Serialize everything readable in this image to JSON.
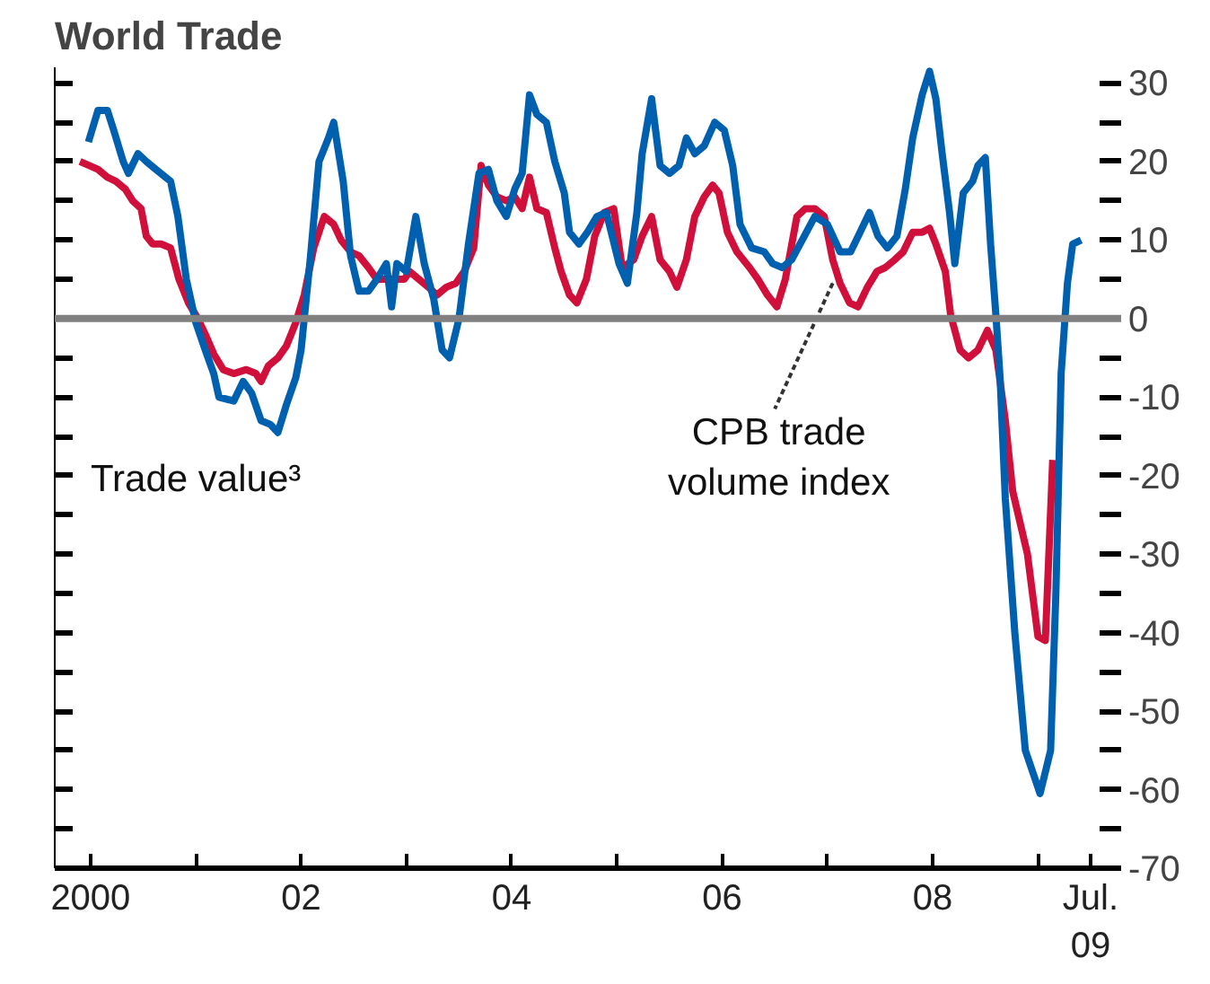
{
  "chart_data": {
    "type": "line",
    "title": "World Trade",
    "xlim": [
      1999.66,
      2009.79
    ],
    "ylim": [
      -70,
      32
    ],
    "annotations": [
      "Trade value³",
      {
        "text": "CPB trade\nvolume index",
        "x": 2007.05,
        "y": 4.5
      }
    ],
    "xticks": [
      2000,
      {
        "value": 2001,
        "label": null
      },
      {
        "value": 2002,
        "label": "02"
      },
      {
        "value": 2003,
        "label": null
      },
      {
        "value": 2004,
        "label": "04"
      },
      {
        "value": 2005,
        "label": null
      },
      {
        "value": 2006,
        "label": "06"
      },
      {
        "value": 2007,
        "label": null
      },
      {
        "value": 2008,
        "label": "08"
      },
      {
        "value": 2009,
        "label": null
      },
      {
        "value": 2009.5,
        "label": "Jul.\n09"
      }
    ],
    "yticks": [
      -70,
      {
        "value": -65,
        "label": null
      },
      -60,
      {
        "value": -55,
        "label": null
      },
      -50,
      {
        "value": -45,
        "label": null
      },
      -40,
      {
        "value": -35,
        "label": null
      },
      -30,
      {
        "value": -25,
        "label": null
      },
      -20,
      {
        "value": -15,
        "label": null
      },
      -10,
      {
        "value": -5,
        "label": null
      },
      0,
      {
        "value": 5,
        "label": null
      },
      10,
      {
        "value": 15,
        "label": null
      },
      20,
      {
        "value": 25,
        "label": null
      },
      30
    ],
    "ref_lines": [
      {
        "axis": "y",
        "value": 0,
        "color": "#808080"
      }
    ],
    "marker": "none",
    "line_style": "solid",
    "series": [
      {
        "color": "#d0103a",
        "x": [
          1999.9,
          2000.07,
          2000.16,
          2000.24,
          2000.33,
          2000.4,
          2000.48,
          2000.53,
          2000.59,
          2000.67,
          2000.76,
          2000.84,
          2000.93,
          2001.02,
          2001.09,
          2001.17,
          2001.26,
          2001.36,
          2001.48,
          2001.57,
          2001.62,
          2001.69,
          2001.78,
          2001.86,
          2001.95,
          2002.03,
          2002.12,
          2002.22,
          2002.31,
          2002.38,
          2002.47,
          2002.55,
          2002.64,
          2002.72,
          2002.81,
          2002.9,
          2002.98,
          2003.03,
          2003.12,
          2003.21,
          2003.29,
          2003.38,
          2003.47,
          2003.55,
          2003.64,
          2003.71,
          2003.78,
          2003.86,
          2003.95,
          2004.03,
          2004.1,
          2004.17,
          2004.24,
          2004.33,
          2004.41,
          2004.47,
          2004.55,
          2004.62,
          2004.71,
          2004.79,
          2004.88,
          2004.97,
          2005.05,
          2005.16,
          2005.24,
          2005.33,
          2005.41,
          2005.5,
          2005.57,
          2005.66,
          2005.74,
          2005.83,
          2005.91,
          2005.97,
          2006.05,
          2006.14,
          2006.26,
          2006.34,
          2006.43,
          2006.52,
          2006.6,
          2006.71,
          2006.79,
          2006.88,
          2006.97,
          2007.05,
          2007.12,
          2007.21,
          2007.29,
          2007.38,
          2007.47,
          2007.55,
          2007.64,
          2007.72,
          2007.81,
          2007.9,
          2007.97,
          2008.03,
          2008.12,
          2008.17,
          2008.26,
          2008.34,
          2008.43,
          2008.52,
          2008.6,
          2008.69,
          2008.76,
          2008.9,
          2009.0,
          2009.07,
          2009.14
        ],
        "values": [
          20,
          19,
          18,
          17.5,
          16.5,
          15,
          14,
          10.5,
          9.5,
          9.5,
          9,
          5,
          2,
          0,
          -2,
          -4.5,
          -6.5,
          -7,
          -6.5,
          -7,
          -8,
          -6,
          -5,
          -3.5,
          -0.5,
          3,
          9,
          13,
          12,
          10,
          8.5,
          8,
          6.5,
          5,
          5,
          5,
          5,
          6,
          5,
          4,
          3,
          4,
          4.5,
          6,
          9,
          19.5,
          17,
          15.5,
          15,
          15.5,
          14,
          18,
          14,
          13.5,
          9,
          6,
          3,
          2,
          5,
          10.5,
          13.5,
          14,
          6.5,
          7.5,
          10.5,
          13,
          7.5,
          6,
          4,
          7.5,
          13,
          15.5,
          17,
          16,
          11,
          8.5,
          6.5,
          5,
          3,
          1.5,
          5,
          13,
          14,
          14,
          13,
          7.5,
          4.5,
          2,
          1.5,
          4,
          6,
          6.5,
          7.5,
          8.5,
          11,
          11,
          11.5,
          9.5,
          6,
          0.5,
          -4,
          -5,
          -4,
          -1.5,
          -4,
          -13,
          -22,
          -30,
          -40.5,
          -41,
          -18
        ]
      },
      {
        "color": "#0060b0",
        "x": [
          1999.98,
          2000.07,
          2000.16,
          2000.22,
          2000.31,
          2000.36,
          2000.45,
          2000.53,
          2000.62,
          2000.76,
          2000.83,
          2000.91,
          2001.0,
          2001.09,
          2001.17,
          2001.22,
          2001.36,
          2001.45,
          2001.53,
          2001.62,
          2001.71,
          2001.78,
          2001.86,
          2001.95,
          2002.0,
          2002.09,
          2002.17,
          2002.26,
          2002.31,
          2002.4,
          2002.47,
          2002.55,
          2002.64,
          2002.72,
          2002.81,
          2002.86,
          2002.91,
          2003.0,
          2003.09,
          2003.17,
          2003.26,
          2003.34,
          2003.41,
          2003.5,
          2003.59,
          2003.69,
          2003.78,
          2003.86,
          2003.95,
          2004.03,
          2004.1,
          2004.17,
          2004.24,
          2004.33,
          2004.41,
          2004.5,
          2004.55,
          2004.64,
          2004.72,
          2004.81,
          2004.9,
          2005.02,
          2005.1,
          2005.19,
          2005.24,
          2005.33,
          2005.41,
          2005.5,
          2005.59,
          2005.66,
          2005.74,
          2005.83,
          2005.93,
          2006.02,
          2006.1,
          2006.17,
          2006.28,
          2006.4,
          2006.48,
          2006.57,
          2006.66,
          2006.78,
          2006.88,
          2007.0,
          2007.12,
          2007.22,
          2007.31,
          2007.4,
          2007.48,
          2007.57,
          2007.66,
          2007.74,
          2007.81,
          2007.9,
          2007.97,
          2008.03,
          2008.09,
          2008.16,
          2008.21,
          2008.29,
          2008.38,
          2008.43,
          2008.5,
          2008.55,
          2008.6,
          2008.64,
          2008.69,
          2008.78,
          2008.88,
          2009.02,
          2009.12,
          2009.17,
          2009.22,
          2009.28,
          2009.33,
          2009.41
        ],
        "values": [
          22.5,
          26.5,
          26.5,
          24,
          20,
          18.5,
          21,
          20,
          19,
          17.5,
          13,
          5,
          -0.5,
          -4,
          -7,
          -10,
          -10.5,
          -8,
          -9.5,
          -13,
          -13.5,
          -14.5,
          -11,
          -7.5,
          -4,
          8,
          20,
          23,
          25,
          17.5,
          8,
          3.5,
          3.5,
          5,
          7,
          1.5,
          7,
          6,
          13,
          7,
          2.5,
          -4,
          -5,
          0,
          9.5,
          18.5,
          19,
          15,
          13,
          16.5,
          18.5,
          28.5,
          26,
          25,
          20,
          16,
          11,
          9.5,
          11,
          13,
          13.5,
          7,
          4.5,
          13.5,
          21,
          28,
          19.5,
          18.5,
          19.5,
          23,
          21,
          22,
          25,
          24,
          19.5,
          12,
          9,
          8.5,
          7,
          6.5,
          7.5,
          10.5,
          13,
          12,
          8.5,
          8.5,
          11,
          13.5,
          10.5,
          9,
          10.5,
          16.5,
          23,
          28.5,
          31.5,
          28,
          21,
          13.5,
          7,
          16,
          17.5,
          19.5,
          20.5,
          9.5,
          0.5,
          -7.5,
          -23,
          -40,
          -55,
          -60.5,
          -55,
          -35,
          -7,
          4.5,
          9.5,
          10
        ]
      }
    ]
  }
}
